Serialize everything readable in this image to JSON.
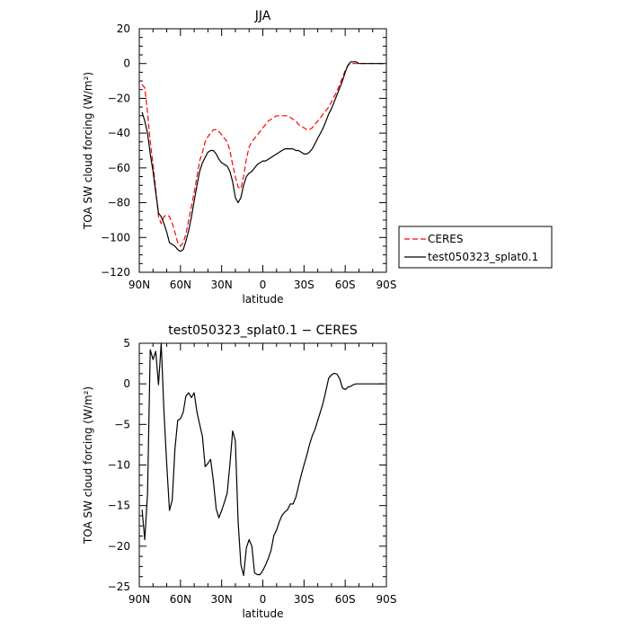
{
  "chart_data": [
    {
      "type": "line",
      "title": "JJA",
      "xlabel": "latitude",
      "ylabel": "TOA SW cloud forcing (W/m²)",
      "xlim": [
        90,
        -90
      ],
      "ylim": [
        -120,
        20
      ],
      "x_ticks": [
        90,
        60,
        30,
        0,
        -30,
        -60,
        -90
      ],
      "x_tick_labels": [
        "90N",
        "60N",
        "30N",
        "0",
        "30S",
        "60S",
        "90S"
      ],
      "y_ticks": [
        20,
        0,
        -20,
        -40,
        -60,
        -80,
        -100,
        -120
      ],
      "y_tick_labels": [
        "20",
        "0",
        "−20",
        "−40",
        "−60",
        "−80",
        "−100",
        "−120"
      ],
      "legend_position": "right",
      "series": [
        {
          "name": "CERES",
          "color": "#ff0000",
          "dash": "dashed",
          "x": [
            88,
            86,
            84,
            82,
            80,
            78,
            76,
            74,
            72,
            70,
            68,
            66,
            64,
            62,
            60,
            58,
            56,
            54,
            52,
            50,
            48,
            46,
            44,
            42,
            40,
            38,
            36,
            34,
            32,
            30,
            28,
            26,
            24,
            22,
            20,
            18,
            16,
            14,
            12,
            10,
            8,
            6,
            4,
            2,
            0,
            -2,
            -4,
            -6,
            -8,
            -10,
            -12,
            -14,
            -16,
            -18,
            -20,
            -22,
            -24,
            -26,
            -28,
            -30,
            -32,
            -34,
            -36,
            -38,
            -40,
            -42,
            -44,
            -46,
            -48,
            -50,
            -52,
            -54,
            -56,
            -58,
            -60,
            -62,
            -64,
            -66,
            -68,
            -70,
            -72,
            -74,
            -76,
            -78,
            -80,
            -82,
            -84,
            -86,
            -88
          ],
          "y": [
            -12,
            -14,
            -28,
            -45,
            -58,
            -72,
            -88,
            -92,
            -88,
            -87,
            -88,
            -92,
            -97,
            -103,
            -105,
            -103,
            -98,
            -90,
            -82,
            -74,
            -65,
            -56,
            -51,
            -45,
            -42,
            -40,
            -38,
            -38,
            -39,
            -41,
            -43,
            -45,
            -50,
            -58,
            -65,
            -71,
            -72,
            -65,
            -55,
            -48,
            -45,
            -43,
            -41,
            -39,
            -37,
            -35,
            -33,
            -32,
            -31,
            -30,
            -30,
            -30,
            -30,
            -30,
            -31,
            -32,
            -33,
            -35,
            -36,
            -37,
            -38,
            -38,
            -37,
            -35,
            -33,
            -31,
            -29,
            -27,
            -25,
            -22,
            -19,
            -16,
            -12,
            -8,
            -4,
            -1,
            0,
            0,
            0,
            0,
            0,
            0,
            0,
            0,
            0,
            0,
            0,
            0,
            0
          ]
        },
        {
          "name": "test050323_splat0.1",
          "color": "#000000",
          "dash": "solid",
          "x": [
            88,
            86,
            84,
            82,
            80,
            78,
            76,
            74,
            72,
            70,
            68,
            66,
            64,
            62,
            60,
            58,
            56,
            54,
            52,
            50,
            48,
            46,
            44,
            42,
            40,
            38,
            36,
            34,
            32,
            30,
            28,
            26,
            24,
            22,
            20,
            18,
            16,
            14,
            12,
            10,
            8,
            6,
            4,
            2,
            0,
            -2,
            -4,
            -6,
            -8,
            -10,
            -12,
            -14,
            -16,
            -18,
            -20,
            -22,
            -24,
            -26,
            -28,
            -30,
            -32,
            -34,
            -36,
            -38,
            -40,
            -42,
            -44,
            -46,
            -48,
            -50,
            -52,
            -54,
            -56,
            -58,
            -60,
            -62,
            -64,
            -66,
            -68,
            -70,
            -72,
            -74,
            -76,
            -78,
            -80,
            -82,
            -84,
            -86,
            -88
          ],
          "y": [
            -28,
            -33,
            -40,
            -52,
            -62,
            -74,
            -86,
            -88,
            -92,
            -97,
            -103,
            -104,
            -105,
            -107,
            -108,
            -107,
            -102,
            -96,
            -88,
            -79,
            -70,
            -62,
            -57,
            -54,
            -51,
            -50,
            -50,
            -52,
            -55,
            -57,
            -58,
            -59,
            -62,
            -68,
            -77,
            -80,
            -77,
            -70,
            -65,
            -63,
            -62,
            -60,
            -58,
            -57,
            -56,
            -56,
            -55,
            -54,
            -53,
            -52,
            -51,
            -50,
            -49,
            -49,
            -49,
            -49,
            -50,
            -50,
            -51,
            -52,
            -52,
            -51,
            -49,
            -46,
            -43,
            -40,
            -37,
            -33,
            -29,
            -26,
            -22,
            -18,
            -14,
            -10,
            -5,
            -1,
            1,
            1,
            1,
            0,
            0,
            0,
            0,
            0,
            0,
            0,
            0,
            0,
            0
          ]
        }
      ]
    },
    {
      "type": "line",
      "title": "test050323_splat0.1 − CERES",
      "xlabel": "latitude",
      "ylabel": "TOA SW cloud forcing (W/m²)",
      "xlim": [
        90,
        -90
      ],
      "ylim": [
        -25,
        5
      ],
      "x_ticks": [
        90,
        60,
        30,
        0,
        -30,
        -60,
        -90
      ],
      "x_tick_labels": [
        "90N",
        "60N",
        "30N",
        "0",
        "30S",
        "60S",
        "90S"
      ],
      "y_ticks": [
        5,
        0,
        -5,
        -10,
        -15,
        -20,
        -25
      ],
      "y_tick_labels": [
        "5",
        "0",
        "−5",
        "−10",
        "−15",
        "−20",
        "−25"
      ],
      "series": [
        {
          "color": "#000000",
          "dash": "solid",
          "x": [
            88,
            86,
            84,
            82,
            80,
            78,
            76,
            74,
            72,
            70,
            68,
            66,
            64,
            62,
            60,
            58,
            56,
            54,
            52,
            50,
            48,
            46,
            44,
            42,
            40,
            38,
            36,
            34,
            32,
            30,
            28,
            26,
            24,
            22,
            20,
            18,
            16,
            14,
            12,
            10,
            8,
            6,
            4,
            2,
            0,
            -2,
            -4,
            -6,
            -8,
            -10,
            -12,
            -14,
            -16,
            -18,
            -20,
            -22,
            -24,
            -26,
            -28,
            -30,
            -32,
            -34,
            -36,
            -38,
            -40,
            -42,
            -44,
            -46,
            -48,
            -50,
            -52,
            -54,
            -56,
            -58,
            -60,
            -62,
            -64,
            -66,
            -68,
            -70,
            -72,
            -74,
            -76,
            -78,
            -80,
            -82,
            -84,
            -86,
            -88
          ],
          "y": [
            -15.5,
            -19.2,
            -13.5,
            4.2,
            3.0,
            4.0,
            -0.1,
            5.0,
            -3.5,
            -10.0,
            -15.6,
            -14.3,
            -8.0,
            -4.5,
            -4.3,
            -3.5,
            -1.5,
            -1.1,
            -1.7,
            -1.1,
            -3.5,
            -5.0,
            -6.5,
            -10.2,
            -9.8,
            -9.3,
            -12.0,
            -15.4,
            -16.5,
            -15.6,
            -14.6,
            -13.5,
            -10.0,
            -5.8,
            -7.0,
            -17.0,
            -22.3,
            -23.6,
            -20.2,
            -19.2,
            -20.0,
            -23.3,
            -23.5,
            -23.5,
            -23.0,
            -22.3,
            -21.5,
            -20.5,
            -18.7,
            -18.0,
            -17.0,
            -16.2,
            -15.8,
            -15.5,
            -14.8,
            -14.8,
            -14.0,
            -12.6,
            -11.2,
            -10.0,
            -8.8,
            -7.5,
            -6.4,
            -5.6,
            -4.5,
            -3.4,
            -2.3,
            -0.8,
            0.7,
            1.1,
            1.3,
            1.2,
            0.6,
            -0.5,
            -0.7,
            -0.4,
            -0.3,
            -0.1,
            0,
            0,
            0,
            0,
            0,
            0,
            0,
            0,
            0,
            0,
            0
          ]
        }
      ]
    }
  ]
}
